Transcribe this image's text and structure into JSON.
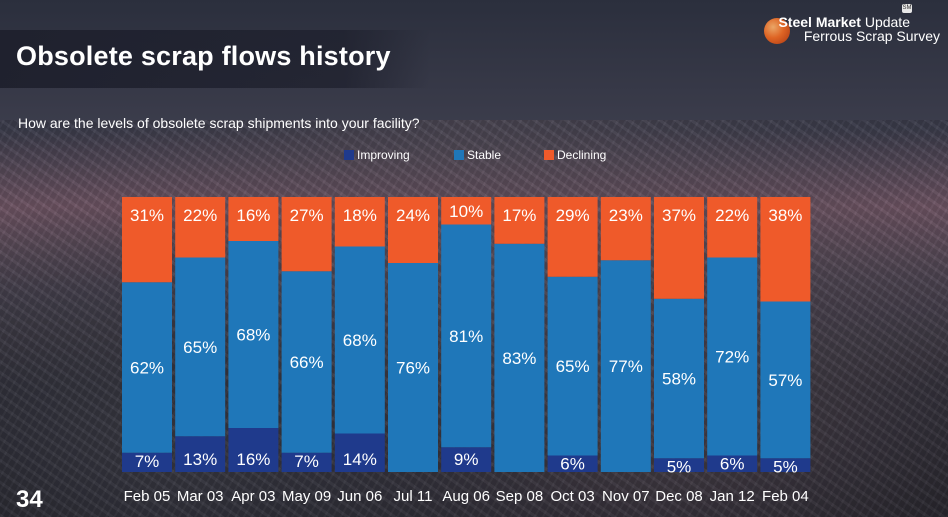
{
  "slide": {
    "title": "Obsolete scrap flows history",
    "page_number": "34"
  },
  "logo": {
    "line1_bold": "Steel Market",
    "line1_rest": " Update",
    "line2": "Ferrous Scrap Survey",
    "badge": "SM"
  },
  "colors": {
    "improving": "#1f3a8c",
    "stable": "#1f77b9",
    "declining": "#ef5a2a"
  },
  "chart_data": {
    "type": "bar",
    "stacked": true,
    "normalized_percent": true,
    "title": "How are the levels of obsolete scrap shipments into your facility?",
    "categories": [
      "Feb 05",
      "Mar 03",
      "Apr 03",
      "May 09",
      "Jun 06",
      "Jul 11",
      "Aug 06",
      "Sep 08",
      "Oct 03",
      "Nov 07",
      "Dec 08",
      "Jan 12",
      "Feb 04"
    ],
    "series": [
      {
        "name": "Improving",
        "values": [
          7,
          13,
          16,
          7,
          14,
          0,
          9,
          0,
          6,
          0,
          5,
          6,
          5
        ]
      },
      {
        "name": "Stable",
        "values": [
          62,
          65,
          68,
          66,
          68,
          76,
          81,
          83,
          65,
          77,
          58,
          72,
          57
        ]
      },
      {
        "name": "Declining",
        "values": [
          31,
          22,
          16,
          27,
          18,
          24,
          10,
          17,
          29,
          23,
          37,
          22,
          38
        ]
      }
    ],
    "labels": {
      "Improving": [
        "7%",
        "13%",
        "16%",
        "7%",
        "14%",
        "",
        "9%",
        "",
        "6%",
        "",
        "5%",
        "6%",
        "5%"
      ],
      "Stable": [
        "62%",
        "65%",
        "68%",
        "66%",
        "68%",
        "76%",
        "81%",
        "83%",
        "65%",
        "77%",
        "58%",
        "72%",
        "57%"
      ],
      "Declining": [
        "31%",
        "22%",
        "16%",
        "27%",
        "18%",
        "24%",
        "10%",
        "17%",
        "29%",
        "23%",
        "37%",
        "22%",
        "38%"
      ]
    },
    "legend": [
      "Improving",
      "Stable",
      "Declining"
    ],
    "legend_position": "top-center",
    "ylim": [
      0,
      100
    ],
    "grid": false
  }
}
